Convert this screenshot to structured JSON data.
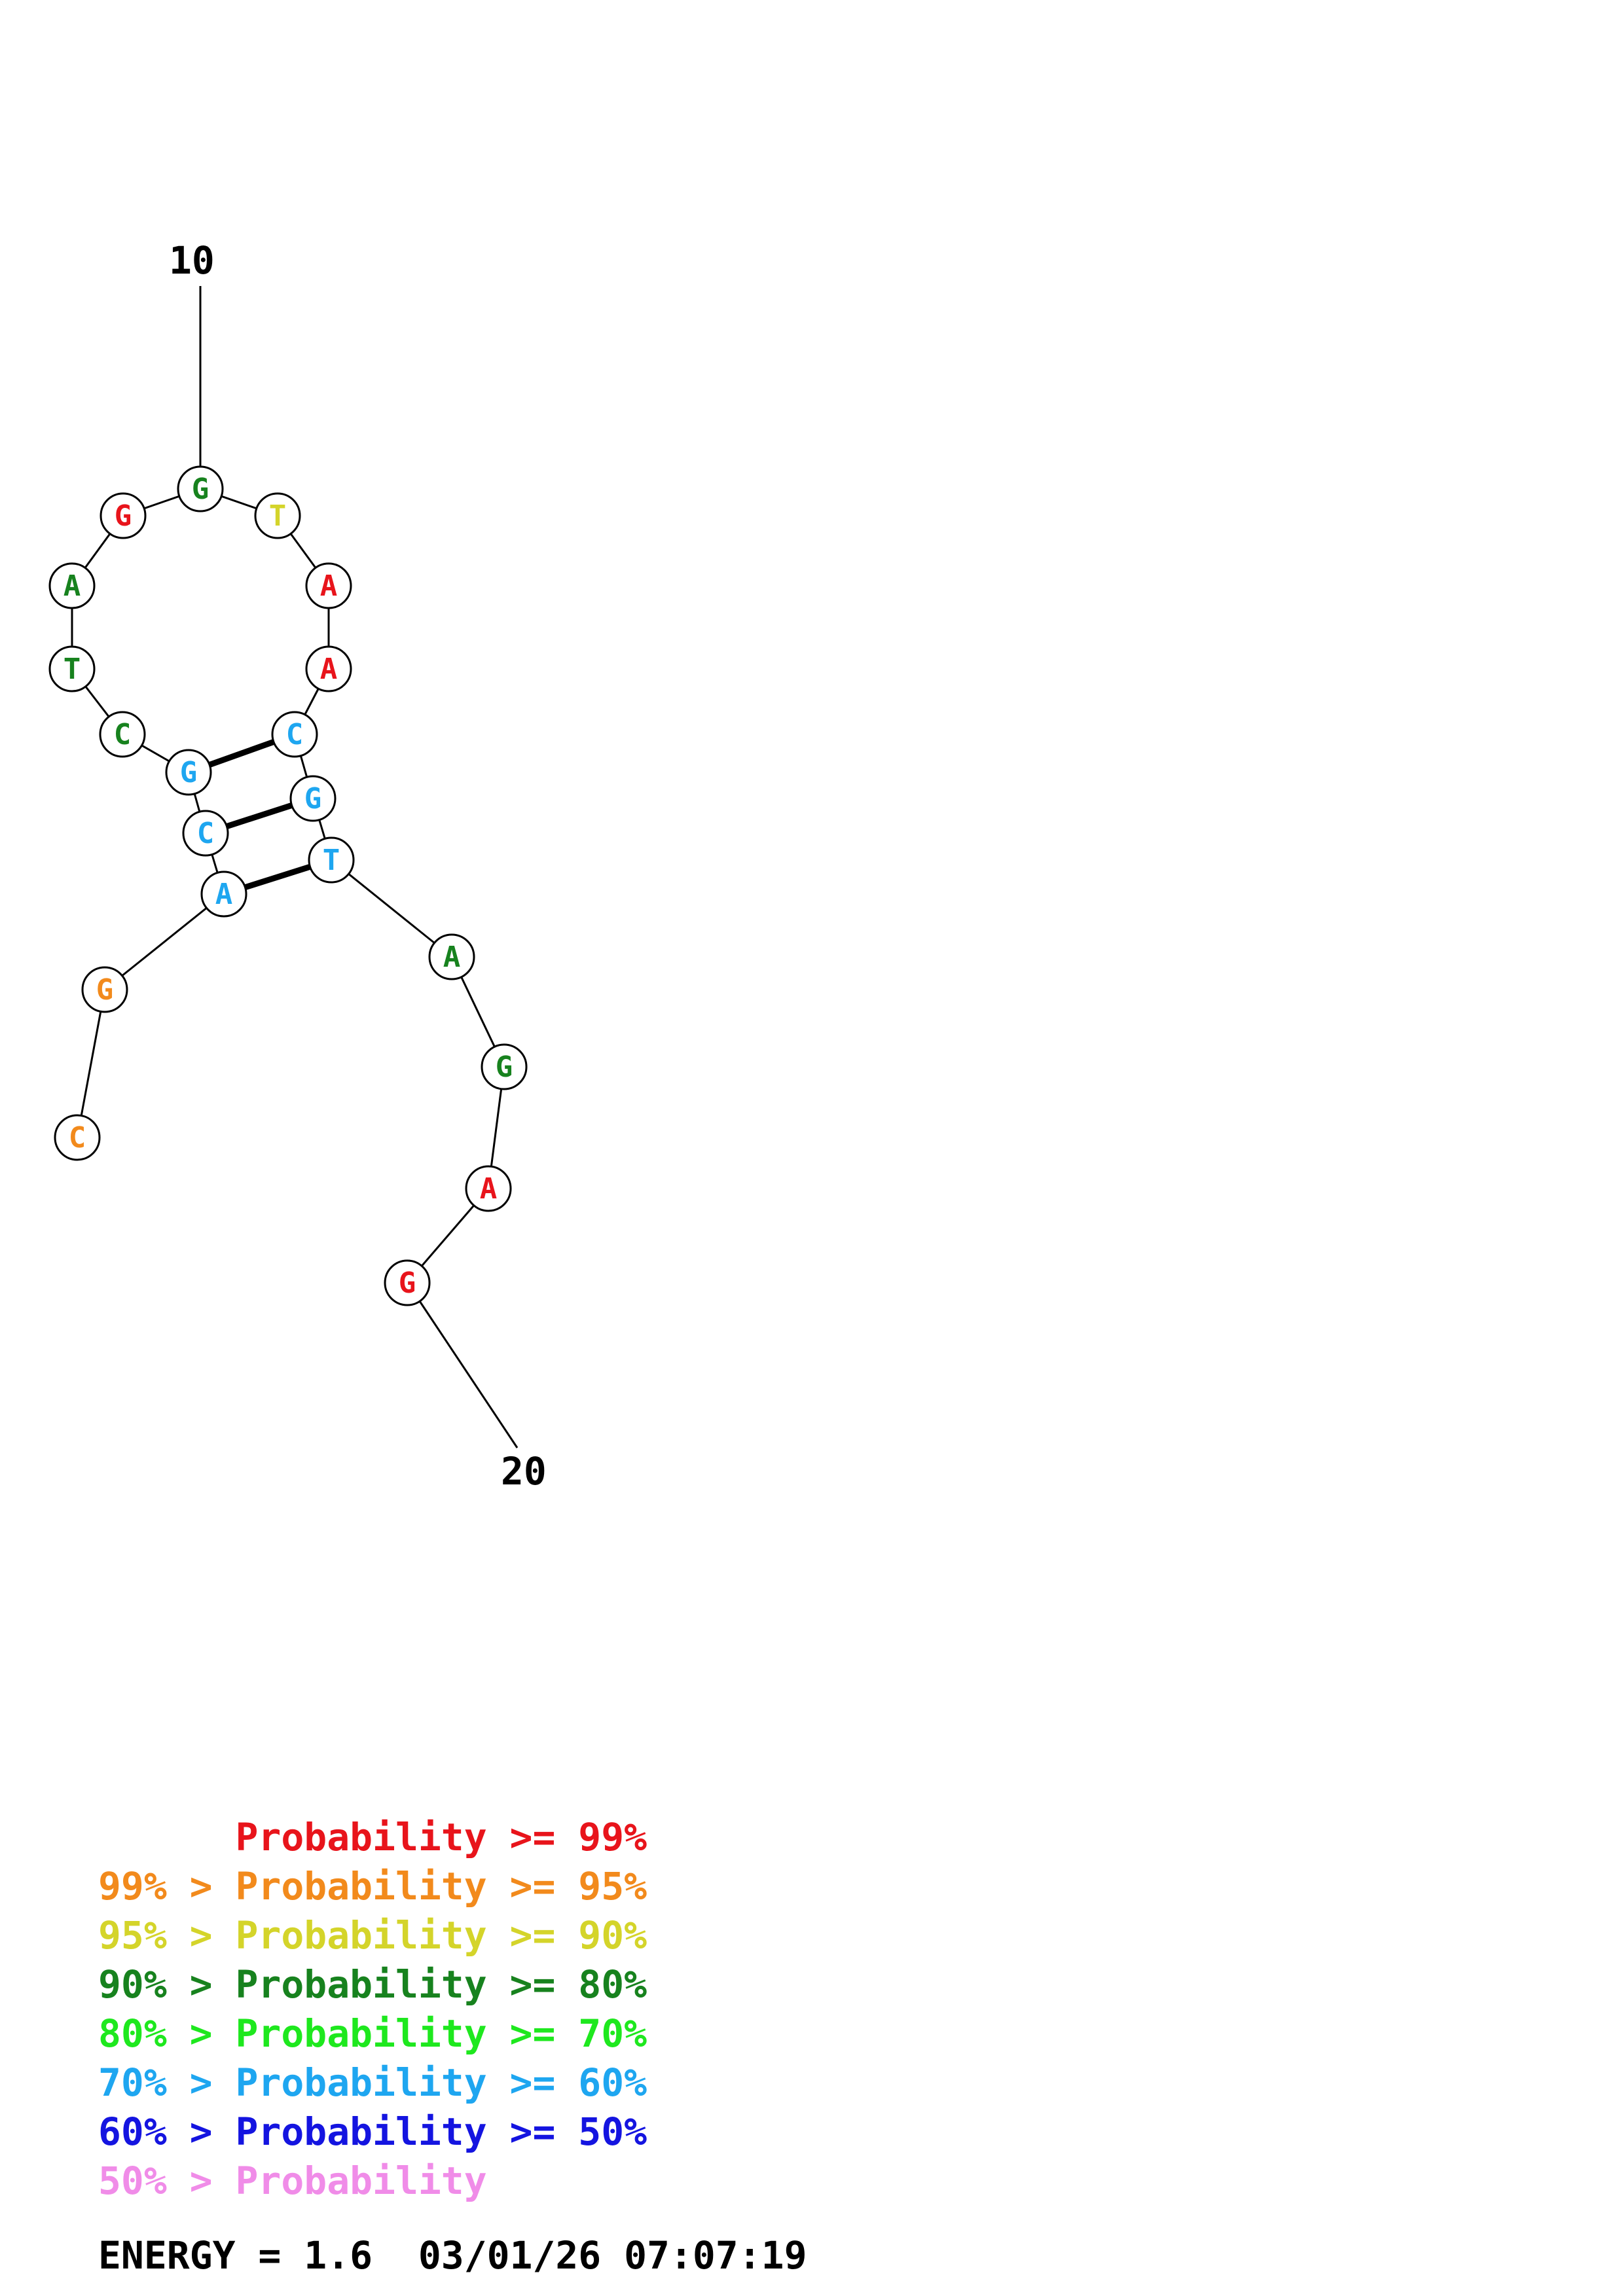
{
  "structure": {
    "label_start": "10",
    "label_end": "20",
    "colors": {
      "red": "#e8141b",
      "orange": "#f28a1c",
      "yellow": "#d4d42a",
      "dark_green": "#17821e",
      "light_green": "#1ee81e",
      "light_blue": "#1ea6f0",
      "blue": "#1414e0",
      "pink": "#f08ce8"
    },
    "bases": [
      {
        "letter": "C",
        "color": "orange"
      },
      {
        "letter": "G",
        "color": "orange"
      },
      {
        "letter": "A",
        "color": "light_blue"
      },
      {
        "letter": "C",
        "color": "light_blue"
      },
      {
        "letter": "G",
        "color": "light_blue"
      },
      {
        "letter": "C",
        "color": "dark_green"
      },
      {
        "letter": "T",
        "color": "dark_green"
      },
      {
        "letter": "A",
        "color": "dark_green"
      },
      {
        "letter": "G",
        "color": "red"
      },
      {
        "letter": "G",
        "color": "dark_green"
      },
      {
        "letter": "T",
        "color": "yellow"
      },
      {
        "letter": "A",
        "color": "red"
      },
      {
        "letter": "A",
        "color": "red"
      },
      {
        "letter": "C",
        "color": "light_blue"
      },
      {
        "letter": "G",
        "color": "light_blue"
      },
      {
        "letter": "T",
        "color": "light_blue"
      },
      {
        "letter": "A",
        "color": "dark_green"
      },
      {
        "letter": "G",
        "color": "dark_green"
      },
      {
        "letter": "A",
        "color": "red"
      },
      {
        "letter": "G",
        "color": "red"
      }
    ],
    "pairs": [
      [
        3,
        16
      ],
      [
        4,
        15
      ],
      [
        5,
        14
      ]
    ]
  },
  "legend": {
    "lines": [
      {
        "prefix": "    ",
        "text": "Probability >= 99%",
        "color": "#e8141b"
      },
      {
        "prefix": "99% > ",
        "text": "Probability >= 95%",
        "color": "#f28a1c"
      },
      {
        "prefix": "95% > ",
        "text": "Probability >= 90%",
        "color": "#d4d42a"
      },
      {
        "prefix": "90% > ",
        "text": "Probability >= 80%",
        "color": "#17821e"
      },
      {
        "prefix": "80% > ",
        "text": "Probability >= 70%",
        "color": "#1ee81e"
      },
      {
        "prefix": "70% > ",
        "text": "Probability >= 60%",
        "color": "#1ea6f0"
      },
      {
        "prefix": "60% > ",
        "text": "Probability >= 50%",
        "color": "#1414e0"
      },
      {
        "prefix": "50% > ",
        "text": "Probability",
        "color": "#f08ce8"
      }
    ],
    "energy": "ENERGY = 1.6  03/01/26 07:07:19"
  }
}
